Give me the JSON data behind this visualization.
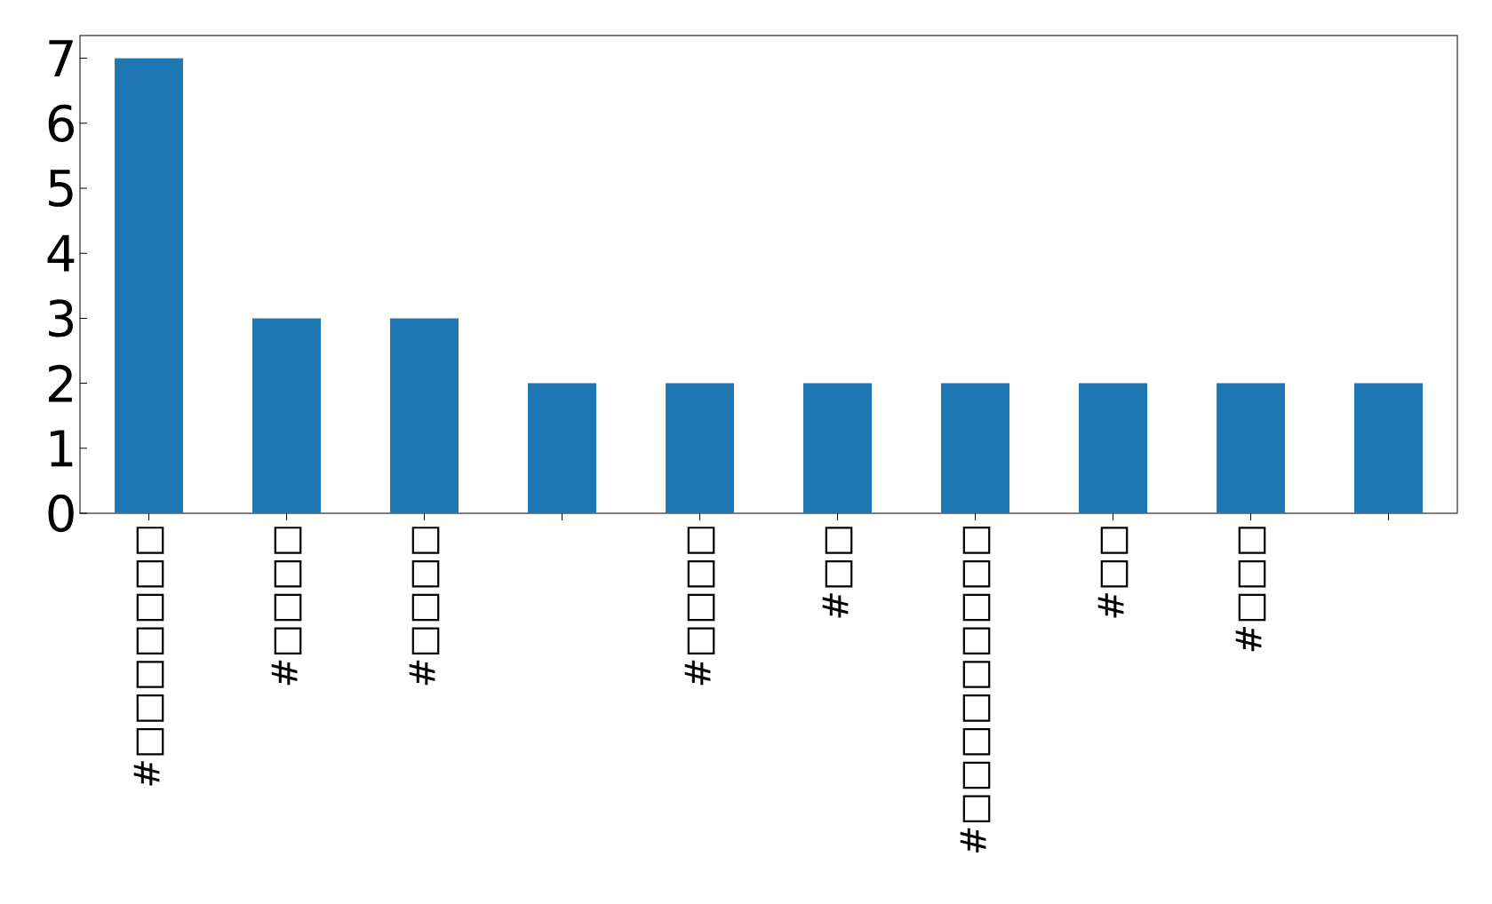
{
  "chart_data": {
    "type": "bar",
    "categories": [
      "#□□□□□□□",
      "#□□□□",
      "#□□□□",
      null,
      "#□□□□",
      "#□□",
      "#□□□□□□□□□",
      "#□□",
      "#□□□",
      null
    ],
    "values": [
      7,
      3,
      3,
      2,
      2,
      2,
      2,
      2,
      2,
      2
    ],
    "color": "#1f77b4",
    "ylim": [
      0,
      7.35
    ],
    "yticks": [
      0,
      1,
      2,
      3,
      4,
      5,
      6,
      7
    ],
    "grid": false
  }
}
